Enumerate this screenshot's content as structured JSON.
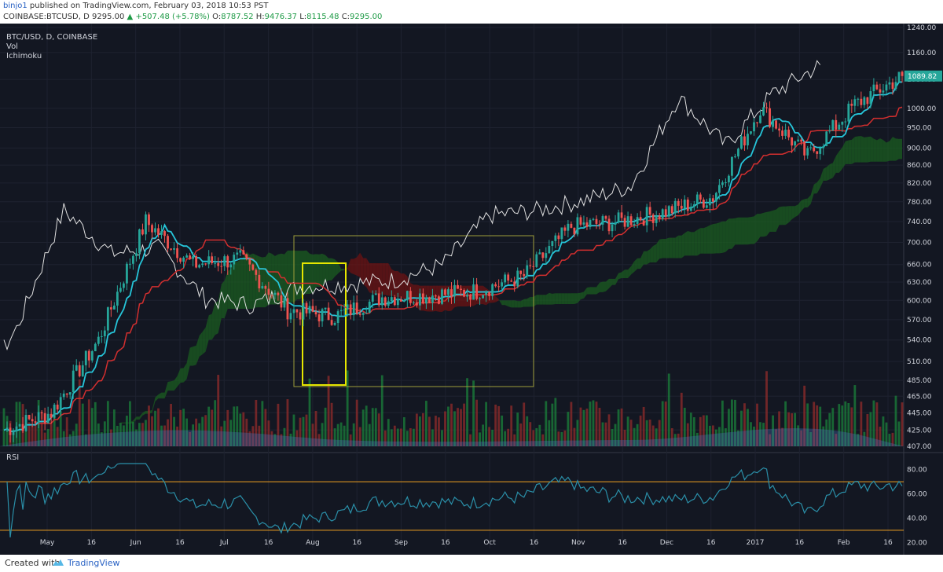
{
  "header": {
    "user": "binjo1",
    "published": "published on TradingView.com, February 03, 2018 10:53 PST",
    "symbol": "COINBASE:BTCUSD, D",
    "price": "9295.00",
    "change": "+507.48 (+5.78%)",
    "o_label": "O:",
    "o_val": "8787.52",
    "h_label": "H:",
    "h_val": "9476.37",
    "l_label": "L:",
    "l_val": "8115.48",
    "c_label": "C:",
    "c_val": "9295.00"
  },
  "legend": {
    "symbol": "BTC/USD, D, COINBASE",
    "vol": "Vol",
    "ichimoku": "Ichimoku",
    "rsi": "RSI"
  },
  "footer": {
    "created_with": "Created with",
    "brand": "TradingView"
  },
  "colors": {
    "bg": "#131722",
    "up": "#26a69a",
    "down": "#ef5350",
    "tenkan": "#26c6da",
    "kijun": "#d32f2f",
    "chikou": "#e0e0e0",
    "cloud_up": "#1b5e20",
    "cloud_down": "#6d1313",
    "rsi": "#2a8fa8",
    "rsi_band": "#f0a020",
    "box": "#e6e600"
  },
  "chart_data": {
    "type": "candlestick",
    "title": "BTC/USD, D, COINBASE",
    "price_axis": {
      "scale": "log",
      "ticks": [
        "1240.00",
        "1160.00",
        "1080.00",
        "1000.00",
        "950.00",
        "900.00",
        "860.00",
        "820.00",
        "780.00",
        "740.00",
        "700.00",
        "660.00",
        "630.00",
        "600.00",
        "570.00",
        "540.00",
        "510.00",
        "485.00",
        "465.00",
        "445.00",
        "425.00",
        "407.00"
      ],
      "last_price_label": "1089.82"
    },
    "time_axis": {
      "ticks": [
        "May",
        "16",
        "Jun",
        "16",
        "Jul",
        "16",
        "Aug",
        "16",
        "Sep",
        "16",
        "Oct",
        "16",
        "Nov",
        "16",
        "Dec",
        "16",
        "2017",
        "16",
        "Feb",
        "16"
      ]
    },
    "rsi": {
      "ticks": [
        "80.00",
        "60.00",
        "40.00",
        "20.00"
      ],
      "upper": 70,
      "lower": 30
    },
    "candles_close_approx": [
      {
        "date": "May",
        "close": 425
      },
      {
        "date": "16",
        "close": 445
      },
      {
        "date": "Jun",
        "close": 540
      },
      {
        "date": "16",
        "close": 740
      },
      {
        "date": "Jul",
        "close": 660
      },
      {
        "date": "16",
        "close": 670
      },
      {
        "date": "Aug",
        "close": 585
      },
      {
        "date": "16",
        "close": 575
      },
      {
        "date": "Sep",
        "close": 605
      },
      {
        "date": "16",
        "close": 608
      },
      {
        "date": "Oct",
        "close": 615
      },
      {
        "date": "16",
        "close": 640
      },
      {
        "date": "Nov",
        "close": 730
      },
      {
        "date": "16",
        "close": 740
      },
      {
        "date": "Dec",
        "close": 760
      },
      {
        "date": "16",
        "close": 790
      },
      {
        "date": "2017",
        "close": 1000
      },
      {
        "date": "16",
        "close": 880
      },
      {
        "date": "Feb",
        "close": 1010
      },
      {
        "date": "16",
        "close": 1089.82
      }
    ]
  }
}
